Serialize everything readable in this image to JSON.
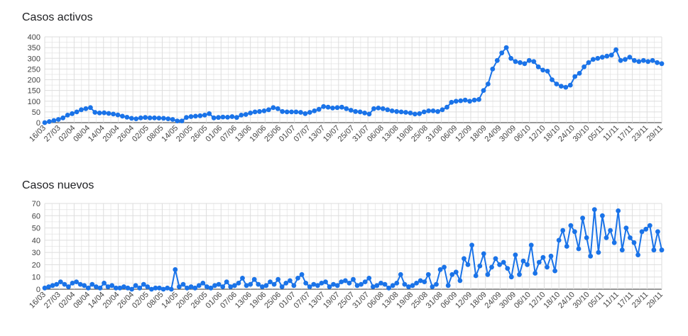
{
  "chart_data": [
    {
      "type": "line",
      "title": "Casos activos",
      "xlabel": "",
      "ylabel": "",
      "ylim": [
        0,
        400
      ],
      "yticks": [
        "0",
        "50",
        "100",
        "150",
        "200",
        "250",
        "300",
        "350",
        "400"
      ],
      "xticks": [
        "16/03",
        "27/03",
        "02/04",
        "08/04",
        "14/04",
        "20/04",
        "26/04",
        "02/05",
        "08/05",
        "14/05",
        "20/05",
        "26/05",
        "01/06",
        "07/06",
        "13/06",
        "19/06",
        "25/06",
        "01/07",
        "07/07",
        "13/07",
        "19/07",
        "25/07",
        "31/07",
        "06/08",
        "13/08",
        "19/08",
        "25/08",
        "31/08",
        "06/09",
        "12/09",
        "18/09",
        "24/09",
        "30/09",
        "06/10",
        "12/10",
        "18/10",
        "24/10",
        "30/10",
        "05/11",
        "11/11",
        "17/11",
        "23/11",
        "29/11"
      ],
      "grid": true,
      "color": "#1a73e8",
      "series": [
        {
          "values": [
            0,
            5,
            10,
            15,
            22,
            35,
            42,
            50,
            60,
            65,
            70,
            48,
            45,
            46,
            43,
            40,
            36,
            30,
            25,
            20,
            18,
            22,
            24,
            22,
            22,
            21,
            20,
            18,
            15,
            8,
            8,
            24,
            28,
            30,
            32,
            35,
            42,
            22,
            24,
            26,
            25,
            28,
            24,
            35,
            38,
            45,
            50,
            52,
            55,
            60,
            70,
            65,
            52,
            50,
            50,
            50,
            48,
            42,
            48,
            55,
            62,
            75,
            72,
            68,
            70,
            72,
            65,
            58,
            52,
            50,
            45,
            40,
            65,
            68,
            65,
            60,
            55,
            52,
            50,
            48,
            45,
            40,
            42,
            50,
            55,
            55,
            52,
            60,
            72,
            95,
            100,
            102,
            105,
            100,
            105,
            108,
            150,
            180,
            250,
            290,
            325,
            350,
            300,
            285,
            280,
            275,
            290,
            285,
            260,
            245,
            240,
            200,
            180,
            170,
            165,
            175,
            215,
            230,
            260,
            280,
            295,
            300,
            305,
            310,
            315,
            340,
            290,
            295,
            305,
            290,
            285,
            290,
            285,
            290,
            280,
            275
          ]
        }
      ]
    },
    {
      "type": "line",
      "title": "Casos nuevos",
      "xlabel": "",
      "ylabel": "",
      "ylim": [
        0,
        70
      ],
      "yticks": [
        "0",
        "10",
        "20",
        "30",
        "40",
        "50",
        "60",
        "70"
      ],
      "xticks": [
        "16/03",
        "27/03",
        "02/04",
        "08/04",
        "14/04",
        "20/04",
        "26/04",
        "02/05",
        "08/05",
        "14/05",
        "20/05",
        "26/05",
        "01/06",
        "07/06",
        "13/06",
        "19/06",
        "25/06",
        "01/07",
        "07/07",
        "13/07",
        "19/07",
        "25/07",
        "31/07",
        "06/08",
        "13/08",
        "19/08",
        "25/08",
        "31/08",
        "06/09",
        "12/09",
        "18/09",
        "24/09",
        "30/09",
        "06/10",
        "12/10",
        "18/10",
        "24/10",
        "30/10",
        "05/11",
        "11/11",
        "17/11",
        "23/11",
        "29/11"
      ],
      "grid": true,
      "color": "#1a73e8",
      "series": [
        {
          "values": [
            1,
            2,
            3,
            4,
            6,
            4,
            2,
            5,
            6,
            4,
            3,
            1,
            4,
            2,
            1,
            5,
            2,
            3,
            1,
            1,
            2,
            1,
            0,
            3,
            1,
            4,
            2,
            0,
            1,
            1,
            0,
            1,
            0,
            16,
            2,
            4,
            1,
            2,
            1,
            3,
            5,
            2,
            1,
            3,
            4,
            2,
            6,
            2,
            3,
            5,
            9,
            3,
            4,
            8,
            4,
            2,
            3,
            6,
            4,
            8,
            2,
            5,
            7,
            3,
            9,
            12,
            5,
            2,
            4,
            3,
            5,
            6,
            2,
            4,
            3,
            6,
            7,
            5,
            8,
            3,
            4,
            6,
            9,
            2,
            3,
            5,
            4,
            1,
            3,
            5,
            12,
            4,
            2,
            3,
            5,
            7,
            6,
            12,
            2,
            4,
            16,
            18,
            3,
            12,
            14,
            7,
            25,
            20,
            36,
            11,
            19,
            29,
            12,
            18,
            25,
            20,
            22,
            17,
            10,
            28,
            12,
            23,
            20,
            36,
            13,
            22,
            26,
            18,
            27,
            15,
            40,
            48,
            35,
            52,
            47,
            33,
            58,
            42,
            27,
            65,
            30,
            60,
            42,
            48,
            38,
            64,
            32,
            50,
            42,
            38,
            28,
            47,
            49,
            52,
            32,
            47,
            32
          ]
        }
      ]
    }
  ]
}
